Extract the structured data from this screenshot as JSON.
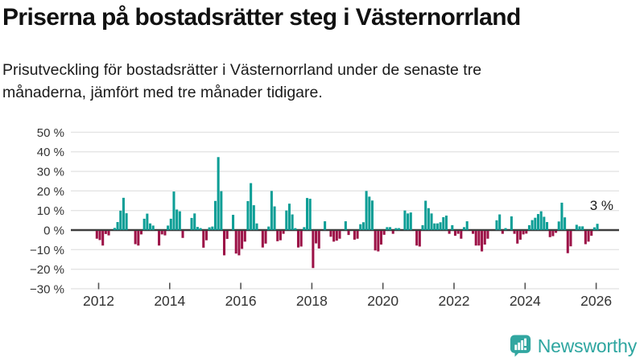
{
  "title": "Priserna på bostadsrätter steg i Västernorrland",
  "subtitle": "Prisutveckling för bostadsrätter i Västernorrland under de senaste tre månaderna, jämfört med tre månader tidigare.",
  "annotation": "3 %",
  "branding": {
    "name": "Newsworthy"
  },
  "chart_data": {
    "type": "bar",
    "title": "Priserna på bostadsrätter steg i Västernorrland",
    "xlabel": "",
    "ylabel": "",
    "unit": "%",
    "frequency": "monthly",
    "start_month": "2011-12",
    "end_month": "2026-01",
    "last_value_label": "3 %",
    "ylim": [
      -30,
      50
    ],
    "y_ticks": [
      50,
      40,
      30,
      20,
      10,
      0,
      -10,
      -20,
      -30
    ],
    "x_ticks": [
      2012,
      2014,
      2016,
      2018,
      2020,
      2022,
      2024,
      2026
    ],
    "grid": true,
    "legend_position": "none",
    "positive_color": "#0d9e96",
    "negative_color": "#9c1247",
    "values": [
      -4,
      -4.7,
      -7.5,
      -1.6,
      -2.3,
      0,
      1.1,
      4.1,
      9.9,
      16.5,
      8.6,
      0,
      0,
      -6.8,
      -7.5,
      -1.8,
      5.8,
      8.4,
      3.4,
      2.3,
      0,
      -7.5,
      -1.8,
      -2.3,
      2.3,
      5.8,
      19.7,
      10.5,
      9.6,
      -3.6,
      0,
      0,
      6.2,
      8.5,
      1.6,
      1,
      -8.6,
      -4.8,
      1.4,
      1.8,
      14.9,
      37.3,
      19.9,
      -12.5,
      -4.1,
      0,
      7.8,
      -11.6,
      -12.5,
      -9.2,
      -5.5,
      14.8,
      24,
      12.7,
      3.4,
      0,
      -8.5,
      -6.5,
      1.8,
      20,
      12.1,
      -5.3,
      -4.8,
      -1.5,
      10,
      13.5,
      8,
      1,
      -8.5,
      -8,
      1.5,
      16.4,
      16,
      -19,
      -6.4,
      -9,
      0,
      4.5,
      0,
      -3,
      -5.5,
      -5,
      -4,
      0,
      4.5,
      -2.1,
      0,
      -4.5,
      -4,
      3,
      4,
      20,
      17.1,
      15.1,
      -10,
      -10.5,
      -7,
      -2,
      1.5,
      1.5,
      -1.5,
      1,
      1,
      0,
      10,
      8.5,
      9,
      0,
      -7.5,
      -8,
      2.5,
      15,
      11.2,
      8.5,
      3.4,
      3.4,
      4,
      6.6,
      7.4,
      -1.5,
      2.5,
      -2.5,
      -1.5,
      -4,
      1.5,
      4.5,
      0,
      -1.5,
      -7.5,
      -7.5,
      -10.5,
      -7,
      -4,
      0,
      0,
      5,
      8,
      -1.5,
      1,
      0,
      7,
      -1.5,
      -6.5,
      -4.5,
      -1.8,
      -1.4,
      2.5,
      5.1,
      6.3,
      8.2,
      9.6,
      6.8,
      4.1,
      -3.2,
      -2.7,
      -1,
      4.4,
      14,
      6.5,
      -11.4,
      -7.9,
      0,
      2.7,
      1.9,
      1.9,
      -6.8,
      -5.5,
      -2.5,
      1.4,
      3.2
    ]
  }
}
